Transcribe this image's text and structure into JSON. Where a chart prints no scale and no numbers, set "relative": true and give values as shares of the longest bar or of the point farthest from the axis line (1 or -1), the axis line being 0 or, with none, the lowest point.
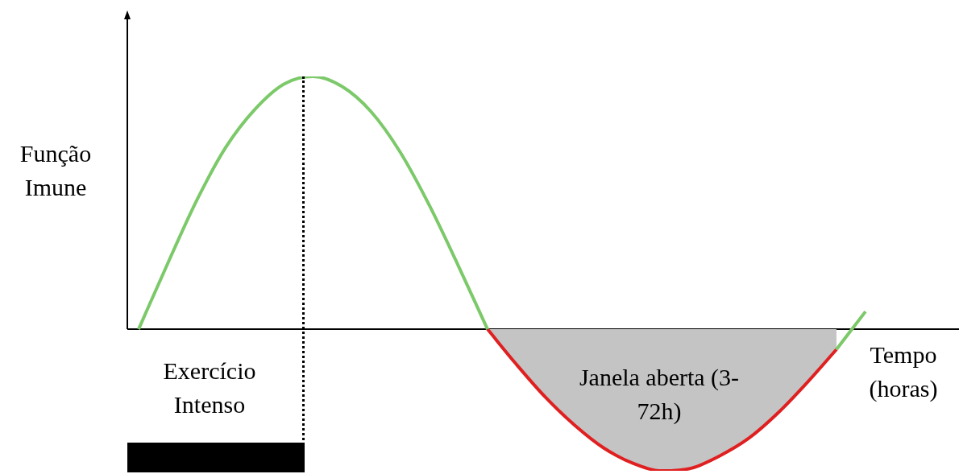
{
  "chart_data": {
    "type": "line",
    "relative": true,
    "marker": "none",
    "legend": false,
    "xlabel": "Tempo (horas)",
    "ylabel": "Função Imune",
    "annotations": [
      "Exercício Intenso",
      "Janela aberta (3-72h)"
    ],
    "categories": [
      null,
      null,
      null,
      null,
      null,
      null,
      null,
      null,
      null,
      null,
      null,
      null,
      null,
      null,
      null,
      null,
      null,
      null,
      null,
      null,
      null,
      null,
      null,
      null,
      null,
      null
    ],
    "series": [
      {
        "type": "line",
        "color": "#7cc96a",
        "values": [
          0,
          0.26,
          0.51,
          0.72,
          0.87,
          0.97,
          1,
          0.96,
          0.86,
          0.7,
          0.49,
          0.25,
          0,
          null,
          null,
          null,
          null,
          null,
          null,
          null,
          null,
          null,
          null,
          null,
          -0.08,
          0.07
        ]
      },
      {
        "type": "area",
        "color": "#e02020",
        "values": [
          null,
          null,
          null,
          null,
          null,
          null,
          null,
          null,
          null,
          null,
          null,
          null,
          0,
          -0.14,
          -0.27,
          -0.38,
          -0.47,
          -0.53,
          -0.56,
          -0.55,
          -0.5,
          -0.43,
          -0.33,
          -0.21,
          -0.08,
          null
        ]
      }
    ]
  }
}
